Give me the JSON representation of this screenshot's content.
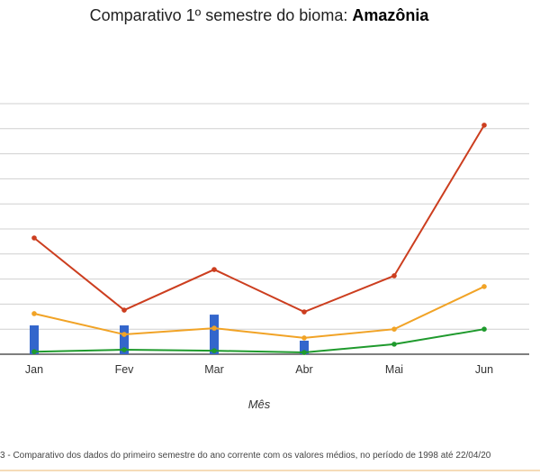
{
  "chart_data": {
    "type": "line",
    "title": "Comparativo 1º semestre do bioma: ",
    "title_bold": "Amazônia",
    "xlabel": "Mês",
    "ylabel": "",
    "categories": [
      "Jan",
      "Fev",
      "Mar",
      "Abr",
      "Mai",
      "Jun"
    ],
    "ylim": [
      0,
      10
    ],
    "grid": true,
    "series": [
      {
        "name": "bar-series",
        "type": "bar",
        "color": "#3366cc",
        "values": [
          1.15,
          1.15,
          1.58,
          0.54,
          0,
          0
        ]
      },
      {
        "name": "red-series",
        "type": "line",
        "color": "#cc3e1f",
        "values": [
          4.64,
          1.76,
          3.38,
          1.69,
          3.13,
          9.14
        ]
      },
      {
        "name": "orange-series",
        "type": "line",
        "color": "#f1a326",
        "values": [
          1.62,
          0.79,
          1.04,
          0.65,
          1.0,
          2.7
        ]
      },
      {
        "name": "green-series",
        "type": "line",
        "color": "#1f9a2d",
        "values": [
          0.1,
          0.18,
          0.14,
          0.07,
          0.4,
          1.0
        ]
      }
    ]
  },
  "caption": "3 - Comparativo dos dados do primeiro semestre do ano corrente com os valores médios, no período de 1998 até 22/04/20"
}
